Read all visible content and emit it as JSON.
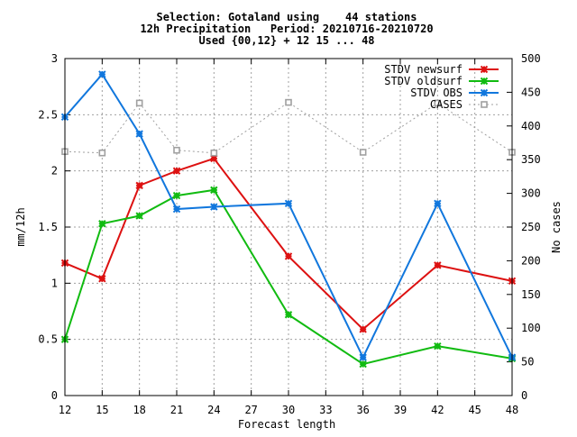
{
  "chart_data": {
    "type": "line",
    "title_lines": [
      "Selection: Gotaland using    44 stations",
      "12h Precipitation   Period: 20210716-20210720",
      "Used {00,12} + 12 15 ... 48"
    ],
    "xlabel": "Forecast length",
    "ylabel": "mm/12h",
    "y2label": "No cases",
    "xlim": [
      12,
      48
    ],
    "ylim": [
      0,
      3
    ],
    "y2lim": [
      0,
      500
    ],
    "x_ticks": [
      "12",
      "15",
      "18",
      "21",
      "24",
      "27",
      "30",
      "33",
      "36",
      "39",
      "42",
      "45",
      "48"
    ],
    "y_ticks": [
      "0",
      "0.5",
      "1",
      "1.5",
      "2",
      "2.5",
      "3"
    ],
    "y2_ticks": [
      "0",
      "50",
      "100",
      "150",
      "200",
      "250",
      "300",
      "350",
      "400",
      "450",
      "500"
    ],
    "grid": true,
    "legend_position": "top-right",
    "series": [
      {
        "name": "STDV newsurf",
        "color": "#dd1111",
        "axis": "left",
        "style": "solid",
        "x": [
          12,
          15,
          18,
          21,
          24,
          30,
          36,
          42,
          48
        ],
        "values": [
          1.18,
          1.04,
          1.87,
          2.0,
          2.11,
          1.24,
          0.59,
          1.16,
          1.02
        ]
      },
      {
        "name": "STDV oldsurf",
        "color": "#11bb11",
        "axis": "left",
        "style": "solid",
        "x": [
          12,
          15,
          18,
          21,
          24,
          30,
          36,
          42,
          48
        ],
        "values": [
          0.5,
          1.53,
          1.6,
          1.78,
          1.83,
          0.72,
          0.28,
          0.44,
          0.33
        ]
      },
      {
        "name": "STDV OBS",
        "color": "#1177dd",
        "axis": "left",
        "style": "solid",
        "x": [
          12,
          15,
          18,
          21,
          24,
          30,
          36,
          42,
          48
        ],
        "values": [
          2.48,
          2.86,
          2.33,
          1.66,
          1.68,
          1.71,
          0.34,
          1.71,
          0.34
        ]
      },
      {
        "name": "CASES",
        "color": "#a0a0a0",
        "axis": "right",
        "style": "dotted",
        "x": [
          12,
          15,
          18,
          21,
          24,
          30,
          36,
          42,
          48
        ],
        "values": [
          362,
          360,
          434,
          364,
          360,
          435,
          361,
          434,
          361
        ]
      }
    ]
  }
}
